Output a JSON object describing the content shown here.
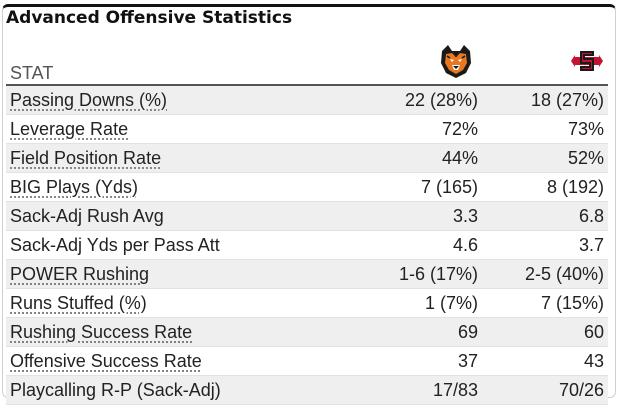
{
  "title": "Advanced Offensive Statistics",
  "header": {
    "stat_label": "STAT",
    "team1_logo": "tiger-logo-icon",
    "team2_logo": "sdsu-logo-icon"
  },
  "rows": [
    {
      "stat": "Passing Downs (%)",
      "team1": "22 (28%)",
      "team2": "18 (27%)",
      "link": true
    },
    {
      "stat": "Leverage Rate",
      "team1": "72%",
      "team2": "73%",
      "link": true
    },
    {
      "stat": "Field Position Rate",
      "team1": "44%",
      "team2": "52%",
      "link": true
    },
    {
      "stat": "BIG Plays (Yds)",
      "team1": "7 (165)",
      "team2": "8 (192)",
      "link": true
    },
    {
      "stat": "Sack-Adj Rush Avg",
      "team1": "3.3",
      "team2": "6.8",
      "link": false
    },
    {
      "stat": "Sack-Adj Yds per Pass Att",
      "team1": "4.6",
      "team2": "3.7",
      "link": false
    },
    {
      "stat": "POWER Rushing",
      "team1": "1-6 (17%)",
      "team2": "2-5 (40%)",
      "link": true
    },
    {
      "stat": "Runs Stuffed (%)",
      "team1": "1 (7%)",
      "team2": "7 (15%)",
      "link": true
    },
    {
      "stat": "Rushing Success Rate",
      "team1": "69",
      "team2": "60",
      "link": true
    },
    {
      "stat": "Offensive Success Rate",
      "team1": "37",
      "team2": "43",
      "link": true
    },
    {
      "stat": "Playcalling R-P (Sack-Adj)",
      "team1": "17/83",
      "team2": "70/26",
      "link": false
    }
  ]
}
